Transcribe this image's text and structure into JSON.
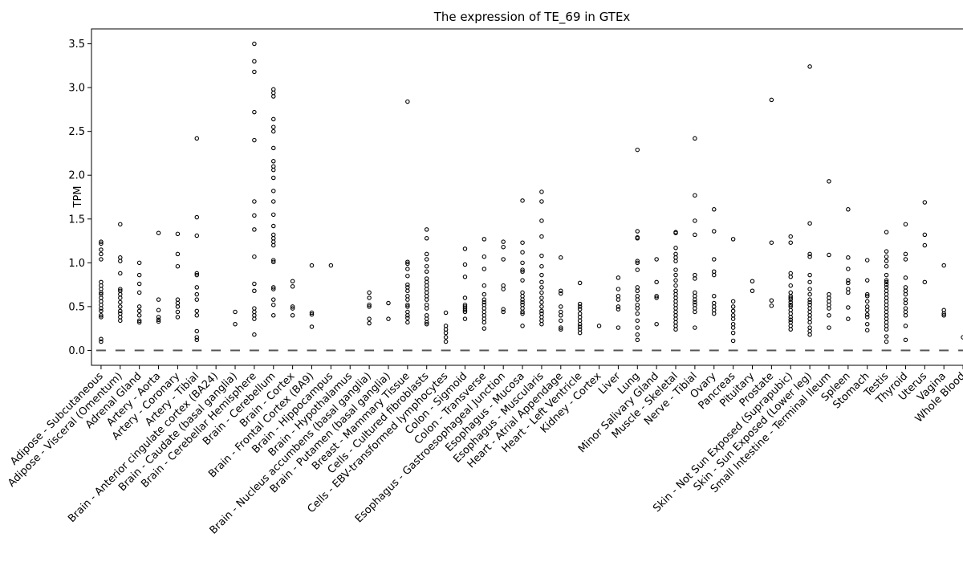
{
  "chart_data": {
    "type": "box",
    "title": "The expression of TE_69 in GTEx",
    "xlabel": "",
    "ylabel": "TPM",
    "ylim": [
      -0.17,
      3.67
    ],
    "yticks": [
      0.0,
      0.5,
      1.0,
      1.5,
      2.0,
      2.5,
      3.0,
      3.5
    ],
    "ytick_labels": [
      "0.0",
      "0.5",
      "1.0",
      "1.5",
      "2.0",
      "2.5",
      "3.0",
      "3.5"
    ],
    "grid": false,
    "legend": "none",
    "categories": [
      "Adipose - Subcutaneous",
      "Adipose - Visceral (Omentum)",
      "Adrenal Gland",
      "Artery - Aorta",
      "Artery - Coronary",
      "Artery - Tibial",
      "Brain - Anterior cingulate cortex (BA24)",
      "Brain - Caudate (basal ganglia)",
      "Brain - Cerebellar Hemisphere",
      "Brain - Cerebellum",
      "Brain - Cortex",
      "Brain - Frontal Cortex (BA9)",
      "Brain - Hippocampus",
      "Brain - Hypothalamus",
      "Brain - Nucleus accumbens (basal ganglia)",
      "Brain - Putamen (basal ganglia)",
      "Breast - Mammary Tissue",
      "Cells - Cultured fibroblasts",
      "Cells - EBV-transformed lymphocytes",
      "Colon - Sigmoid",
      "Colon - Transverse",
      "Esophagus - Gastroesophageal Junction",
      "Esophagus - Mucosa",
      "Esophagus - Muscularis",
      "Heart - Atrial Appendage",
      "Heart - Left Ventricle",
      "Kidney - Cortex",
      "Liver",
      "Lung",
      "Minor Salivary Gland",
      "Muscle - Skeletal",
      "Nerve - Tibial",
      "Ovary",
      "Pancreas",
      "Pituitary",
      "Prostate",
      "Skin - Not Sun Exposed (Suprapubic)",
      "Skin - Sun Exposed (Lower leg)",
      "Small Intestine - Terminal Ileum",
      "Spleen",
      "Stomach",
      "Testis",
      "Thyroid",
      "Uterus",
      "Vagina",
      "Whole Blood"
    ],
    "median": [
      0,
      0,
      0,
      0,
      0,
      0,
      0,
      0,
      0,
      0,
      0,
      0,
      0,
      0,
      0,
      0,
      0,
      0,
      0,
      0,
      0,
      0,
      0,
      0,
      0,
      0,
      0,
      0,
      0,
      0,
      0,
      0,
      0,
      0,
      0,
      0,
      0,
      0,
      0,
      0,
      0,
      0,
      0,
      0,
      0,
      0
    ],
    "outliers": [
      [
        1.24,
        1.22,
        1.15,
        1.1,
        1.04,
        0.78,
        0.74,
        0.7,
        0.66,
        0.64,
        0.6,
        0.56,
        0.52,
        0.48,
        0.45,
        0.4,
        0.38,
        0.13,
        0.1
      ],
      [
        1.44,
        1.06,
        1.02,
        0.88,
        0.7,
        0.68,
        0.64,
        0.6,
        0.55,
        0.5,
        0.45,
        0.42,
        0.38,
        0.34
      ],
      [
        1.0,
        0.86,
        0.76,
        0.66,
        0.5,
        0.45,
        0.4,
        0.34,
        0.32
      ],
      [
        1.34,
        0.58,
        0.46,
        0.38,
        0.35,
        0.33
      ],
      [
        1.33,
        1.1,
        0.96,
        0.58,
        0.54,
        0.5,
        0.44,
        0.38
      ],
      [
        2.42,
        1.52,
        1.31,
        0.88,
        0.86,
        0.72,
        0.64,
        0.58,
        0.45,
        0.4,
        0.22,
        0.15,
        0.12
      ],
      [],
      [
        0.44,
        0.3
      ],
      [
        3.5,
        3.3,
        3.18,
        2.72,
        2.4,
        1.7,
        1.54,
        1.38,
        1.07,
        0.76,
        0.68,
        0.48,
        0.44,
        0.4,
        0.36,
        0.18
      ],
      [
        2.98,
        2.94,
        2.9,
        2.64,
        2.55,
        2.5,
        2.31,
        2.16,
        2.1,
        2.06,
        1.97,
        1.82,
        1.7,
        1.55,
        1.42,
        1.32,
        1.28,
        1.24,
        1.2,
        1.03,
        1.01,
        0.72,
        0.7,
        0.58,
        0.52,
        0.4
      ],
      [
        0.79,
        0.73,
        0.5,
        0.48,
        0.4
      ],
      [
        0.97,
        0.43,
        0.41,
        0.27
      ],
      [
        0.97
      ],
      [],
      [
        0.66,
        0.6,
        0.52,
        0.5,
        0.36,
        0.31
      ],
      [
        0.54,
        0.36
      ],
      [
        2.84,
        1.01,
        0.99,
        0.93,
        0.85,
        0.75,
        0.72,
        0.68,
        0.62,
        0.58,
        0.52,
        0.5,
        0.44,
        0.4,
        0.37,
        0.32
      ],
      [
        1.38,
        1.28,
        1.1,
        1.04,
        0.96,
        0.9,
        0.82,
        0.78,
        0.74,
        0.7,
        0.66,
        0.62,
        0.58,
        0.52,
        0.48,
        0.4,
        0.36,
        0.32,
        0.3
      ],
      [
        0.43,
        0.28,
        0.24,
        0.2,
        0.15,
        0.1
      ],
      [
        1.16,
        0.98,
        0.84,
        0.6,
        0.52,
        0.5,
        0.48,
        0.46,
        0.44,
        0.36
      ],
      [
        1.27,
        1.07,
        0.93,
        0.74,
        0.64,
        0.58,
        0.55,
        0.52,
        0.48,
        0.44,
        0.4,
        0.36,
        0.32,
        0.25
      ],
      [
        1.24,
        1.18,
        1.04,
        0.74,
        0.7,
        0.47,
        0.44
      ],
      [
        1.71,
        1.23,
        1.12,
        1.0,
        0.92,
        0.9,
        0.8,
        0.66,
        0.62,
        0.58,
        0.55,
        0.52,
        0.48,
        0.44,
        0.42,
        0.28
      ],
      [
        1.81,
        1.7,
        1.48,
        1.3,
        1.08,
        0.96,
        0.86,
        0.78,
        0.72,
        0.66,
        0.6,
        0.55,
        0.5,
        0.45,
        0.42,
        0.38,
        0.34,
        0.3
      ],
      [
        1.06,
        0.68,
        0.65,
        0.5,
        0.44,
        0.4,
        0.34,
        0.26,
        0.24
      ],
      [
        0.77,
        0.53,
        0.5,
        0.47,
        0.42,
        0.38,
        0.34,
        0.3,
        0.27,
        0.24,
        0.2
      ],
      [
        0.28
      ],
      [
        0.83,
        0.7,
        0.62,
        0.58,
        0.5,
        0.47,
        0.26
      ],
      [
        2.29,
        1.36,
        1.29,
        1.28,
        1.02,
        1.0,
        0.92,
        0.72,
        0.68,
        0.62,
        0.58,
        0.52,
        0.48,
        0.42,
        0.34,
        0.26,
        0.18,
        0.12
      ],
      [
        1.04,
        0.78,
        0.62,
        0.6,
        0.3
      ],
      [
        1.35,
        1.34,
        1.17,
        1.1,
        1.06,
        1.02,
        0.92,
        0.86,
        0.8,
        0.74,
        0.68,
        0.64,
        0.6,
        0.56,
        0.52,
        0.48,
        0.44,
        0.4,
        0.36,
        0.32,
        0.28,
        0.24
      ],
      [
        2.42,
        1.77,
        1.48,
        1.32,
        0.86,
        0.82,
        0.66,
        0.62,
        0.58,
        0.55,
        0.52,
        0.48,
        0.44,
        0.26
      ],
      [
        1.61,
        1.36,
        1.04,
        0.9,
        0.86,
        0.62,
        0.54,
        0.5,
        0.46,
        0.42
      ],
      [
        1.27,
        0.56,
        0.5,
        0.45,
        0.4,
        0.36,
        0.3,
        0.26,
        0.2,
        0.11
      ],
      [
        0.79,
        0.68
      ],
      [
        2.86,
        1.23,
        0.57,
        0.51
      ],
      [
        1.3,
        1.23,
        0.88,
        0.84,
        0.74,
        0.66,
        0.62,
        0.6,
        0.58,
        0.55,
        0.52,
        0.5,
        0.46,
        0.42,
        0.38,
        0.35,
        0.32,
        0.28,
        0.24
      ],
      [
        3.24,
        1.45,
        1.1,
        1.07,
        0.86,
        0.78,
        0.7,
        0.64,
        0.58,
        0.55,
        0.52,
        0.48,
        0.44,
        0.4,
        0.36,
        0.32,
        0.26,
        0.22,
        0.18
      ],
      [
        1.93,
        1.09,
        0.64,
        0.6,
        0.56,
        0.52,
        0.48,
        0.4,
        0.26
      ],
      [
        1.61,
        1.06,
        0.93,
        0.8,
        0.77,
        0.7,
        0.66,
        0.49,
        0.36
      ],
      [
        1.03,
        0.8,
        0.64,
        0.62,
        0.56,
        0.5,
        0.46,
        0.41,
        0.38,
        0.3,
        0.23
      ],
      [
        1.35,
        1.13,
        1.07,
        1.02,
        0.96,
        0.86,
        0.8,
        0.78,
        0.75,
        0.72,
        0.68,
        0.64,
        0.6,
        0.56,
        0.52,
        0.48,
        0.44,
        0.4,
        0.36,
        0.32,
        0.28,
        0.24,
        0.16,
        0.1
      ],
      [
        1.44,
        1.1,
        1.04,
        0.83,
        0.72,
        0.68,
        0.64,
        0.58,
        0.54,
        0.48,
        0.44,
        0.4,
        0.28,
        0.12
      ],
      [
        1.69,
        1.32,
        1.2,
        0.78
      ],
      [
        0.97,
        0.46,
        0.42,
        0.4
      ],
      [
        0.15
      ]
    ]
  }
}
